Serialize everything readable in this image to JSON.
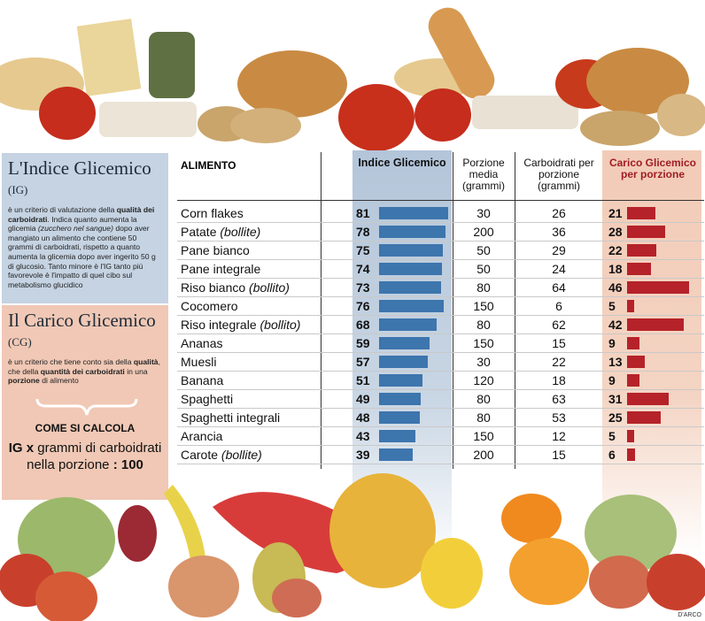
{
  "panel_ig": {
    "title": "L'Indice Glicemico",
    "abbr": "(IG)",
    "text_a": "è un criterio di valutazione della ",
    "text_b": "qualità dei carboidrati",
    "text_c": ". Indica quanto aumenta la glicemia ",
    "text_d": "(zucchero nel sangue)",
    "text_e": " dopo aver mangiato un alimento che contiene 50 grammi di carboidrati, rispetto a quanto aumenta la glicemia dopo aver ingerito 50 g di glucosio. Tanto minore è l'IG tanto più favorevole è l'impatto di quel cibo sul metabolismo glucidico"
  },
  "panel_cg": {
    "title": "Il Carico Glicemico",
    "abbr": "(CG)",
    "text_a": "è un criterio che tiene conto sia della ",
    "text_b": "qualità",
    "text_c": ", che della ",
    "text_d": "quantità dei carboidrati",
    "text_e": " in una ",
    "text_f": "porzione",
    "text_g": " di alimento",
    "calc_heading": "COME SI CALCOLA",
    "formula_a": "IG x",
    "formula_b": " grammi di carboidrati nella porzione ",
    "formula_c": ": 100"
  },
  "chart_data": {
    "type": "table",
    "columns": {
      "alimento": "ALIMENTO",
      "ig": "Indice Glicemico",
      "porzione": "Porzione media (grammi)",
      "carbo": "Carboidrati per porzione (grammi)",
      "cg": "Carico Glicemico per porzione"
    },
    "rows": [
      {
        "food": "Corn flakes",
        "note": "",
        "ig": 81,
        "portion": 30,
        "carbs": 26,
        "cg": 21
      },
      {
        "food": "Patate ",
        "note": "(bollite)",
        "ig": 78,
        "portion": 200,
        "carbs": 36,
        "cg": 28
      },
      {
        "food": "Pane bianco",
        "note": "",
        "ig": 75,
        "portion": 50,
        "carbs": 29,
        "cg": 22
      },
      {
        "food": "Pane integrale",
        "note": "",
        "ig": 74,
        "portion": 50,
        "carbs": 24,
        "cg": 18
      },
      {
        "food": "Riso bianco ",
        "note": "(bollito)",
        "ig": 73,
        "portion": 80,
        "carbs": 64,
        "cg": 46
      },
      {
        "food": "Cocomero",
        "note": "",
        "ig": 76,
        "portion": 150,
        "carbs": 6,
        "cg": 5
      },
      {
        "food": "Riso integrale ",
        "note": "(bollito)",
        "ig": 68,
        "portion": 80,
        "carbs": 62,
        "cg": 42
      },
      {
        "food": "Ananas",
        "note": "",
        "ig": 59,
        "portion": 150,
        "carbs": 15,
        "cg": 9
      },
      {
        "food": "Muesli",
        "note": "",
        "ig": 57,
        "portion": 30,
        "carbs": 22,
        "cg": 13
      },
      {
        "food": "Banana",
        "note": "",
        "ig": 51,
        "portion": 120,
        "carbs": 18,
        "cg": 9
      },
      {
        "food": "Spaghetti",
        "note": "",
        "ig": 49,
        "portion": 80,
        "carbs": 63,
        "cg": 31
      },
      {
        "food": "Spaghetti integrali",
        "note": "",
        "ig": 48,
        "portion": 80,
        "carbs": 53,
        "cg": 25
      },
      {
        "food": "Arancia",
        "note": "",
        "ig": 43,
        "portion": 150,
        "carbs": 12,
        "cg": 5
      },
      {
        "food": "Carote ",
        "note": "(bollite)",
        "ig": 39,
        "portion": 200,
        "carbs": 15,
        "cg": 6
      }
    ],
    "ig_scale_max": 81,
    "cg_scale_max": 46
  },
  "credit": "D'ARCO",
  "colors": {
    "ig_bar": "#3d75ad",
    "cg_bar": "#b5222a",
    "ig_panel": "#c5d3e2",
    "cg_panel": "#f0c8b5"
  }
}
